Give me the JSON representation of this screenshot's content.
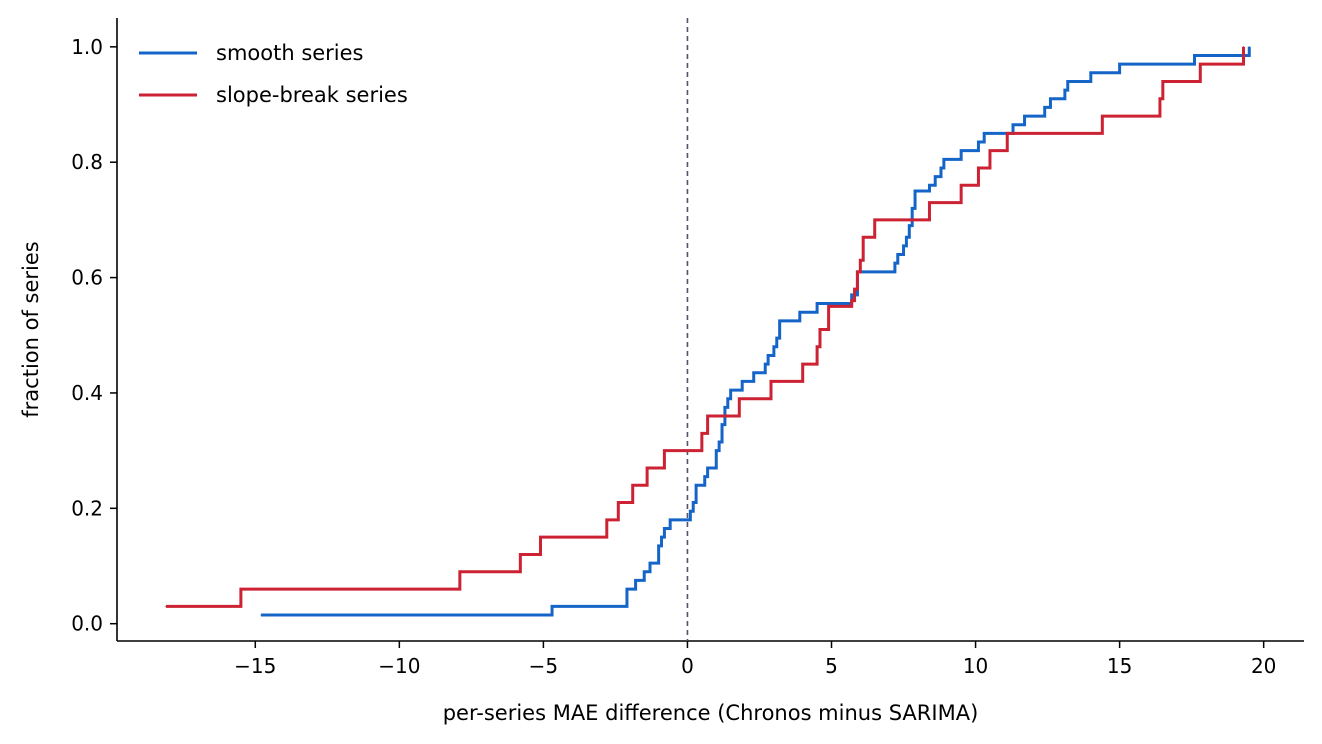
{
  "chart_data": {
    "type": "line",
    "step": "post",
    "title": "",
    "xlabel": "per-series MAE difference (Chronos minus SARIMA)",
    "ylabel": "fraction of series",
    "xlim": [
      -19.8,
      21.4
    ],
    "ylim": [
      -0.03,
      1.05
    ],
    "xticks": [
      -15,
      -10,
      -5,
      0,
      5,
      10,
      15,
      20
    ],
    "xtick_labels": [
      "−15",
      "−10",
      "−5",
      "0",
      "5",
      "10",
      "15",
      "20"
    ],
    "yticks": [
      0.0,
      0.2,
      0.4,
      0.6,
      0.8,
      1.0
    ],
    "ytick_labels": [
      "0.0",
      "0.2",
      "0.4",
      "0.6",
      "0.8",
      "1.0"
    ],
    "reference_line": {
      "x": 0,
      "style": "dashed",
      "color": "#4a5568"
    },
    "grid": false,
    "legend": {
      "position": "top-left"
    },
    "series": [
      {
        "name": "smooth series",
        "color": "#1565c8",
        "points": [
          [
            -14.8,
            0.015
          ],
          [
            -4.7,
            0.03
          ],
          [
            -2.1,
            0.06
          ],
          [
            -1.8,
            0.075
          ],
          [
            -1.5,
            0.09
          ],
          [
            -1.3,
            0.105
          ],
          [
            -1.0,
            0.135
          ],
          [
            -0.9,
            0.15
          ],
          [
            -0.8,
            0.165
          ],
          [
            -0.6,
            0.18
          ],
          [
            0.1,
            0.195
          ],
          [
            0.2,
            0.21
          ],
          [
            0.3,
            0.24
          ],
          [
            0.6,
            0.255
          ],
          [
            0.7,
            0.27
          ],
          [
            1.0,
            0.3
          ],
          [
            1.1,
            0.315
          ],
          [
            1.2,
            0.345
          ],
          [
            1.3,
            0.375
          ],
          [
            1.4,
            0.39
          ],
          [
            1.5,
            0.405
          ],
          [
            1.9,
            0.42
          ],
          [
            2.3,
            0.435
          ],
          [
            2.7,
            0.45
          ],
          [
            2.8,
            0.465
          ],
          [
            3.0,
            0.48
          ],
          [
            3.1,
            0.495
          ],
          [
            3.2,
            0.525
          ],
          [
            3.9,
            0.54
          ],
          [
            4.5,
            0.555
          ],
          [
            5.7,
            0.57
          ],
          [
            5.9,
            0.61
          ],
          [
            7.2,
            0.625
          ],
          [
            7.3,
            0.64
          ],
          [
            7.5,
            0.655
          ],
          [
            7.6,
            0.67
          ],
          [
            7.7,
            0.69
          ],
          [
            7.8,
            0.72
          ],
          [
            7.9,
            0.75
          ],
          [
            8.4,
            0.76
          ],
          [
            8.6,
            0.775
          ],
          [
            8.8,
            0.79
          ],
          [
            8.9,
            0.805
          ],
          [
            9.5,
            0.82
          ],
          [
            10.1,
            0.835
          ],
          [
            10.3,
            0.85
          ],
          [
            11.3,
            0.865
          ],
          [
            11.7,
            0.88
          ],
          [
            12.4,
            0.895
          ],
          [
            12.6,
            0.91
          ],
          [
            13.1,
            0.925
          ],
          [
            13.2,
            0.94
          ],
          [
            14.0,
            0.955
          ],
          [
            15.0,
            0.97
          ],
          [
            17.6,
            0.985
          ],
          [
            19.5,
            1.0
          ]
        ]
      },
      {
        "name": "slope-break series",
        "color": "#cc2233",
        "points": [
          [
            -18.1,
            0.03
          ],
          [
            -15.5,
            0.06
          ],
          [
            -7.9,
            0.09
          ],
          [
            -5.8,
            0.12
          ],
          [
            -5.1,
            0.15
          ],
          [
            -2.8,
            0.18
          ],
          [
            -2.4,
            0.21
          ],
          [
            -1.9,
            0.24
          ],
          [
            -1.4,
            0.27
          ],
          [
            -0.8,
            0.3
          ],
          [
            0.5,
            0.33
          ],
          [
            0.7,
            0.36
          ],
          [
            1.8,
            0.39
          ],
          [
            2.9,
            0.42
          ],
          [
            4.0,
            0.45
          ],
          [
            4.5,
            0.48
          ],
          [
            4.6,
            0.51
          ],
          [
            4.9,
            0.55
          ],
          [
            5.7,
            0.56
          ],
          [
            5.8,
            0.58
          ],
          [
            5.9,
            0.61
          ],
          [
            6.0,
            0.63
          ],
          [
            6.1,
            0.67
          ],
          [
            6.5,
            0.7
          ],
          [
            8.4,
            0.73
          ],
          [
            9.5,
            0.76
          ],
          [
            10.1,
            0.79
          ],
          [
            10.5,
            0.82
          ],
          [
            11.1,
            0.85
          ],
          [
            14.4,
            0.88
          ],
          [
            16.4,
            0.91
          ],
          [
            16.5,
            0.94
          ],
          [
            17.8,
            0.97
          ],
          [
            19.3,
            1.0
          ]
        ]
      }
    ]
  }
}
